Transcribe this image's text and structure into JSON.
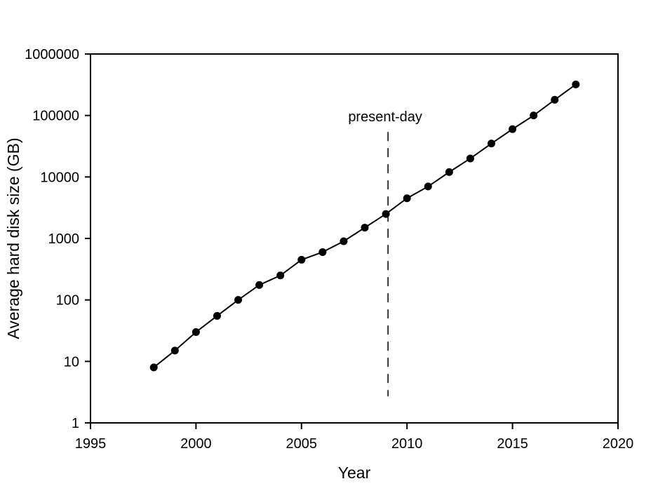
{
  "figure": {
    "background": "#ffffff",
    "foreground": "#000000"
  },
  "chart_data": {
    "type": "line",
    "subtype": "scatter-line",
    "title": "",
    "xlabel": "Year",
    "ylabel": "Average hard disk size (GB)",
    "grid": false,
    "legend": false,
    "x_axis": {
      "min": 1995,
      "max": 2020,
      "ticks": [
        1995,
        2000,
        2005,
        2010,
        2015,
        2020
      ],
      "tick_labels": [
        "1995",
        "2000",
        "2005",
        "2010",
        "2015",
        "2020"
      ]
    },
    "y_axis": {
      "scale": "log10",
      "min": 1,
      "max": 1000000,
      "ticks": [
        1,
        10,
        100,
        1000,
        10000,
        100000,
        1000000
      ],
      "tick_labels": [
        "1",
        "10",
        "100",
        "1000",
        "10000",
        "100000",
        "1000000"
      ]
    },
    "series": [
      {
        "name": "average-hard-disk-size",
        "color": "#000000",
        "marker": "filled-circle",
        "line_style": "solid",
        "x": [
          1998,
          1999,
          2000,
          2001,
          2002,
          2003,
          2004,
          2005,
          2006,
          2007,
          2008,
          2009,
          2010,
          2011,
          2012,
          2013,
          2014,
          2015,
          2016,
          2017,
          2018
        ],
        "y": [
          8,
          15,
          30,
          55,
          100,
          175,
          250,
          450,
          600,
          900,
          1500,
          2500,
          4500,
          7000,
          12000,
          20000,
          35000,
          60000,
          100000,
          180000,
          320000
        ]
      }
    ],
    "annotations": [
      {
        "type": "vertical-dashed-line",
        "label": "present-day",
        "x": 2009.1,
        "y_from": 2.7,
        "y_to": 54000
      }
    ]
  }
}
